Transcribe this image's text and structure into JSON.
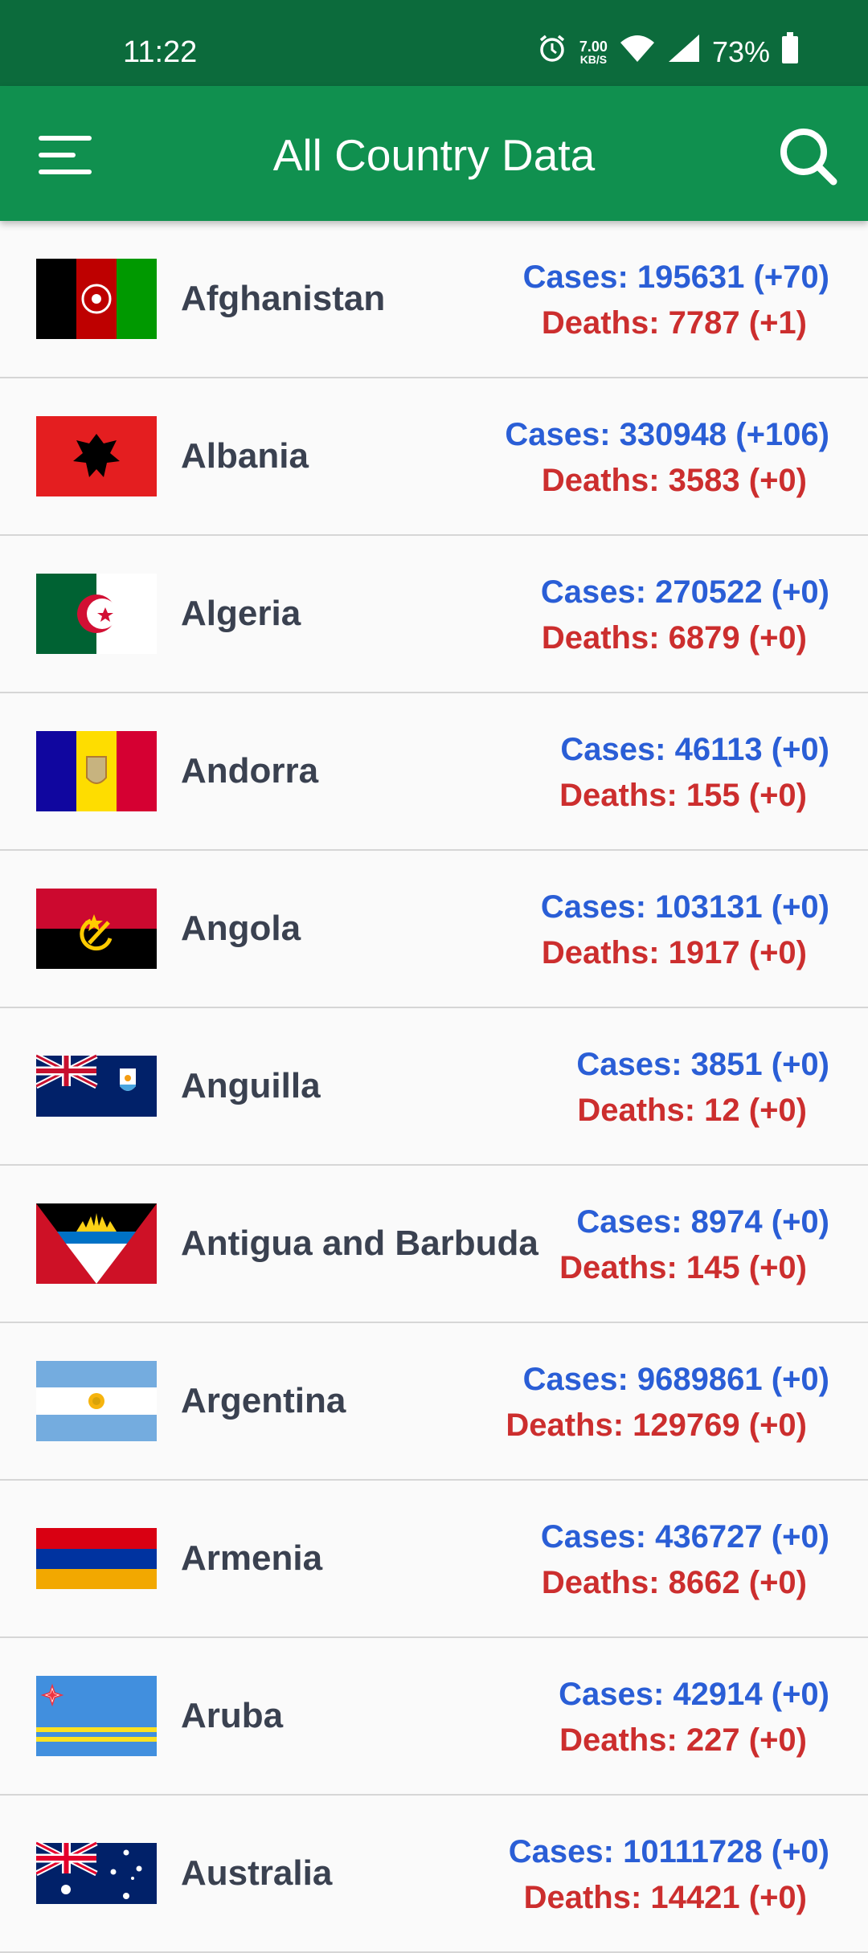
{
  "status_bar": {
    "time": "11:22",
    "net_speed_value": "7.00",
    "net_speed_unit": "KB/S",
    "battery": "73%"
  },
  "app_bar": {
    "title": "All Country Data",
    "bg_color": "#10904f"
  },
  "colors": {
    "cases": "#2a5ed6",
    "deaths": "#cc2e2e"
  },
  "countries": [
    {
      "name": "Afghanistan",
      "cases": "Cases: 195631 (+70)",
      "deaths": "Deaths: 7787 (+1)"
    },
    {
      "name": "Albania",
      "cases": "Cases: 330948 (+106)",
      "deaths": "Deaths: 3583 (+0)"
    },
    {
      "name": "Algeria",
      "cases": "Cases: 270522 (+0)",
      "deaths": "Deaths: 6879 (+0)"
    },
    {
      "name": "Andorra",
      "cases": "Cases: 46113 (+0)",
      "deaths": "Deaths: 155 (+0)"
    },
    {
      "name": "Angola",
      "cases": "Cases: 103131 (+0)",
      "deaths": "Deaths: 1917 (+0)"
    },
    {
      "name": "Anguilla",
      "cases": "Cases: 3851 (+0)",
      "deaths": "Deaths: 12 (+0)"
    },
    {
      "name": "Antigua and Barbuda",
      "cases": "Cases: 8974 (+0)",
      "deaths": "Deaths: 145 (+0)"
    },
    {
      "name": "Argentina",
      "cases": "Cases: 9689861 (+0)",
      "deaths": "Deaths: 129769 (+0)"
    },
    {
      "name": "Armenia",
      "cases": "Cases: 436727 (+0)",
      "deaths": "Deaths: 8662 (+0)"
    },
    {
      "name": "Aruba",
      "cases": "Cases: 42914 (+0)",
      "deaths": "Deaths: 227 (+0)"
    },
    {
      "name": "Australia",
      "cases": "Cases: 10111728 (+0)",
      "deaths": "Deaths: 14421 (+0)"
    }
  ]
}
